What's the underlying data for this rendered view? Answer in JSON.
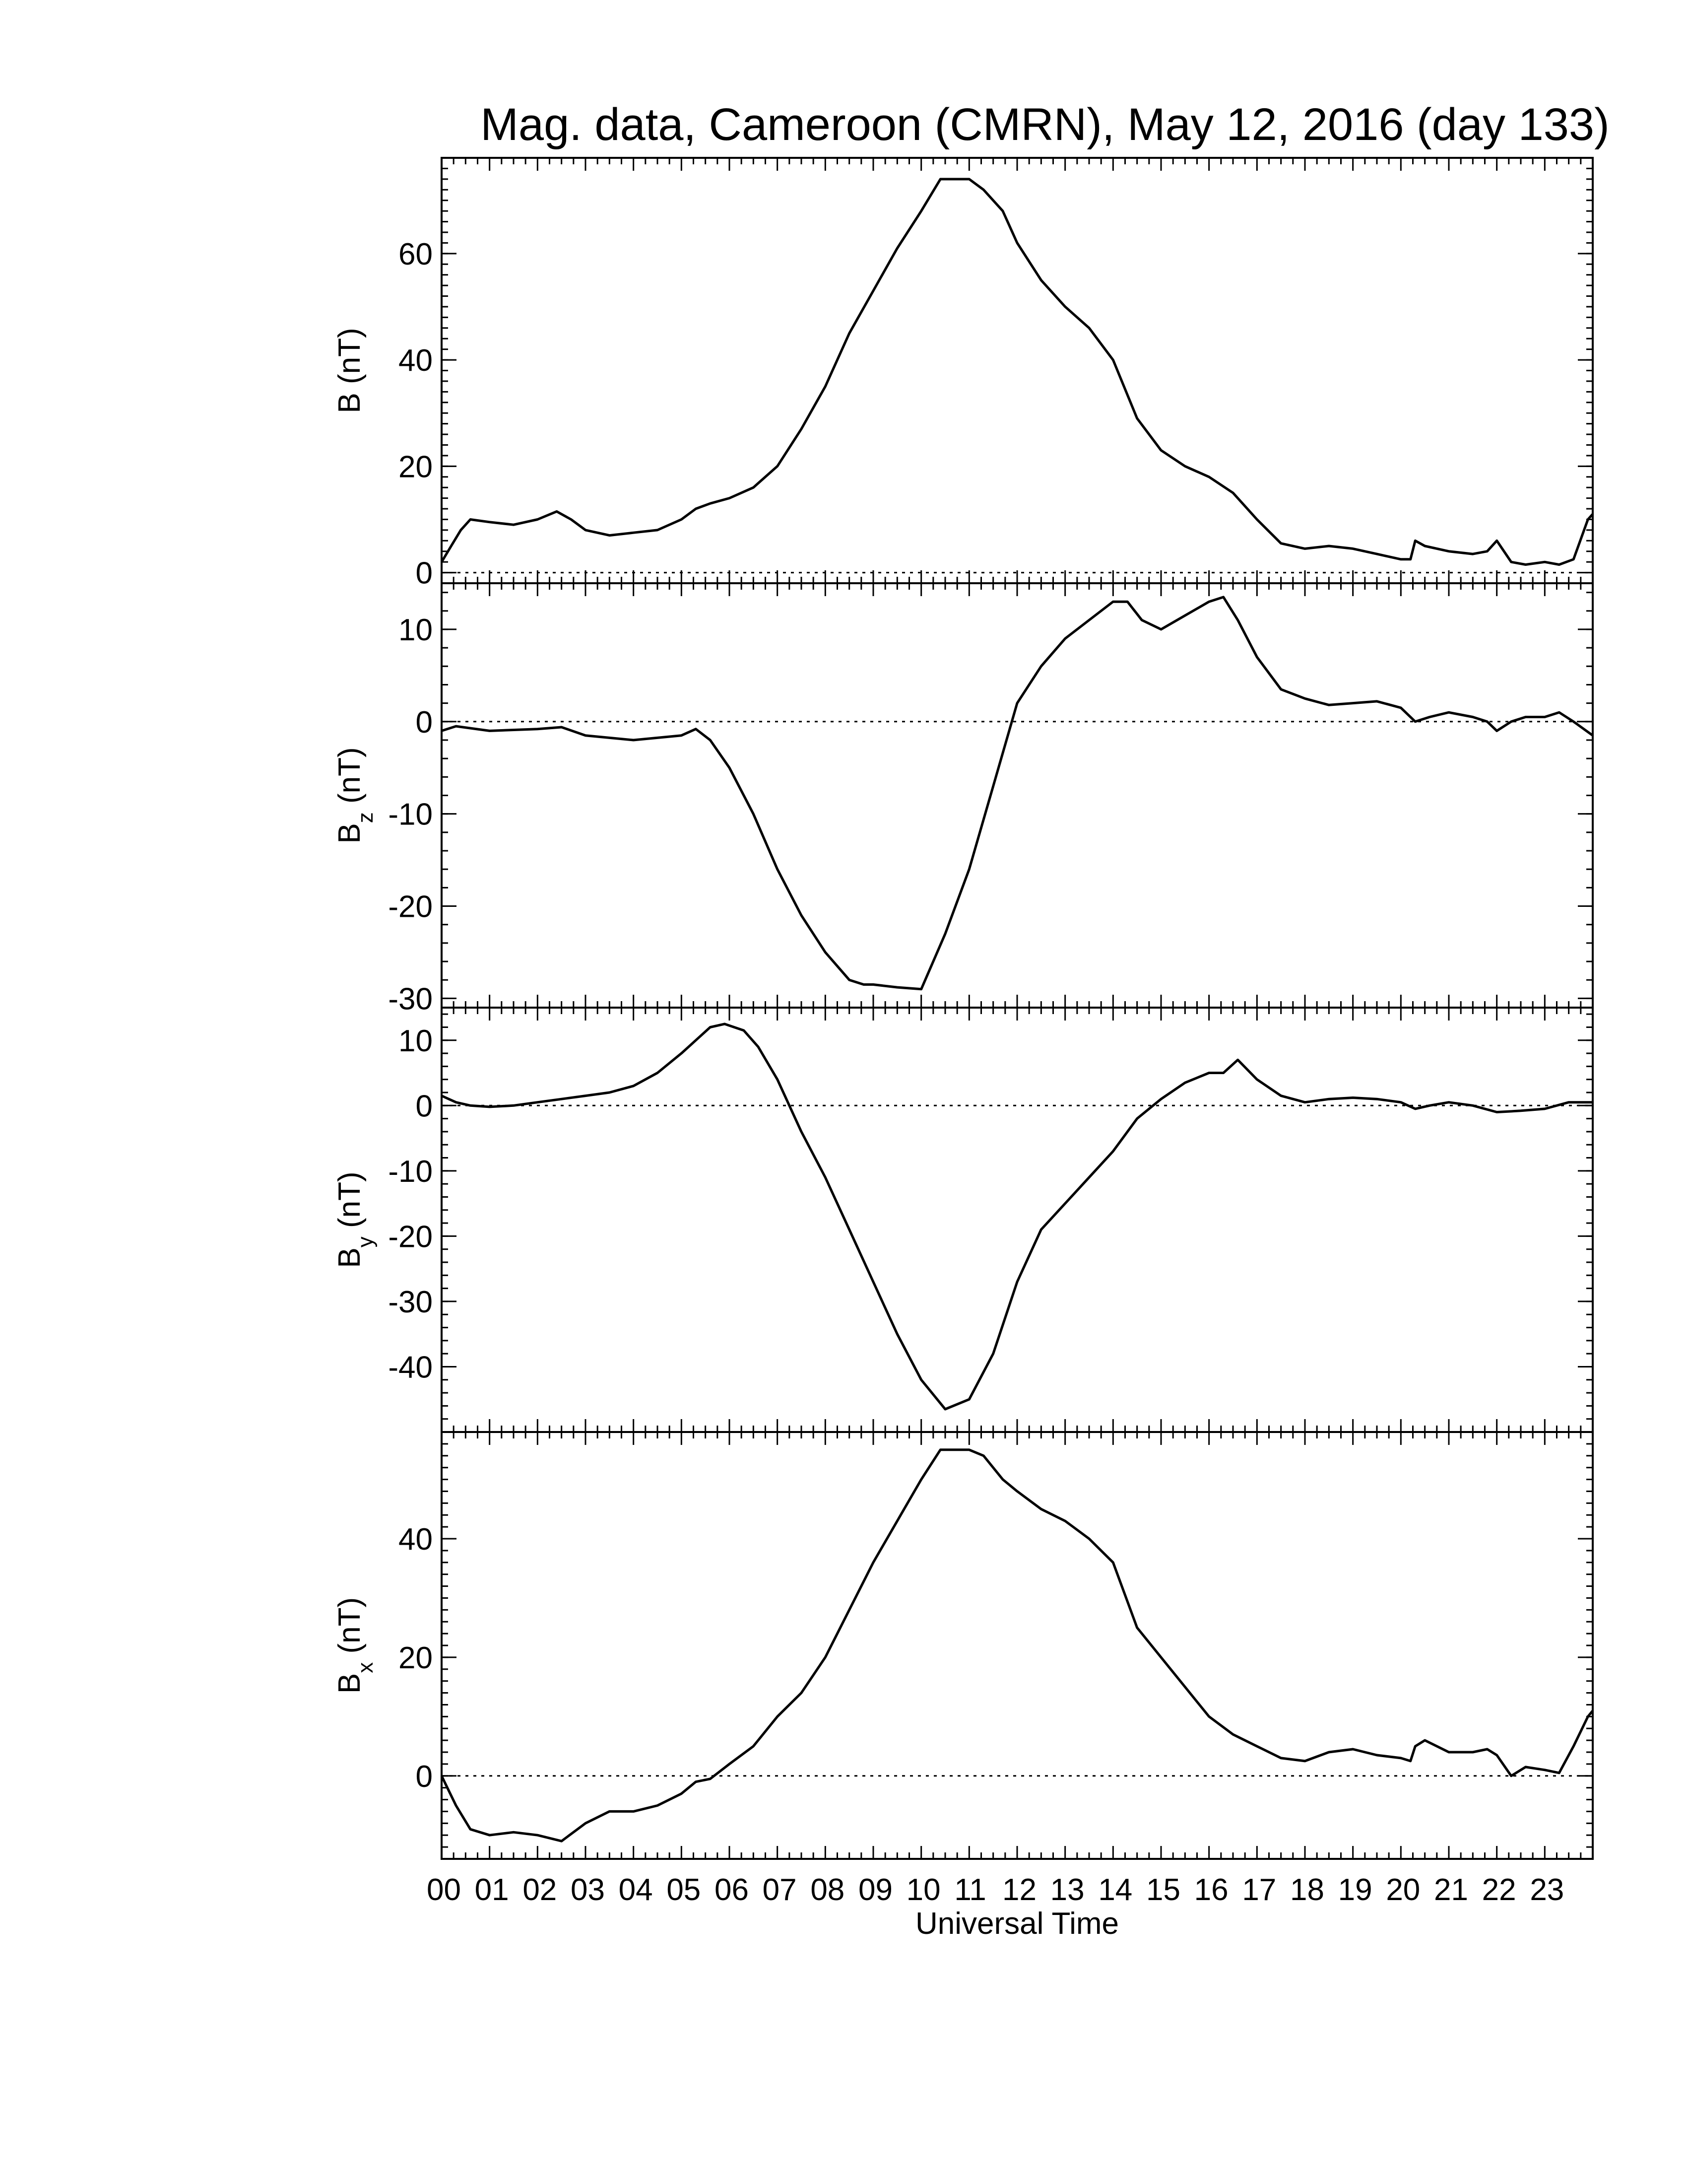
{
  "chart_data": {
    "type": "line",
    "title": "Mag. data, Cameroon (CMRN), May 12, 2016 (day 133)",
    "xlabel": "Universal Time",
    "x_tick_labels": [
      "00",
      "01",
      "02",
      "03",
      "04",
      "05",
      "06",
      "07",
      "08",
      "09",
      "10",
      "11",
      "12",
      "13",
      "14",
      "15",
      "16",
      "17",
      "18",
      "19",
      "20",
      "21",
      "22",
      "23"
    ],
    "xlim": [
      0,
      24
    ],
    "x_unit": "hours UT",
    "panels": [
      {
        "id": "B",
        "ylabel": "B (nT)",
        "ylabel_main": "B",
        "ylabel_sub": "",
        "ylabel_unit": "(nT)",
        "ylim": [
          -2,
          78
        ],
        "yticks": [
          0,
          20,
          40,
          60
        ],
        "ytick_labels": [
          "0",
          "20",
          "40",
          "60"
        ],
        "zero_line": true,
        "x": [
          0,
          0.2,
          0.4,
          0.6,
          1.0,
          1.5,
          2.0,
          2.4,
          2.7,
          3.0,
          3.5,
          4.0,
          4.5,
          5.0,
          5.3,
          5.6,
          6.0,
          6.5,
          7.0,
          7.5,
          8.0,
          8.5,
          9.0,
          9.5,
          10.0,
          10.4,
          10.8,
          11.0,
          11.3,
          11.7,
          12.0,
          12.5,
          13.0,
          13.5,
          14.0,
          14.5,
          15.0,
          15.5,
          16.0,
          16.5,
          17.0,
          17.5,
          18.0,
          18.5,
          19.0,
          19.5,
          20.0,
          20.2,
          20.3,
          20.5,
          21.0,
          21.5,
          21.8,
          22.0,
          22.3,
          22.6,
          23.0,
          23.3,
          23.6,
          23.9,
          24.0
        ],
        "y": [
          2,
          5,
          8,
          10,
          9.5,
          9,
          10,
          11.5,
          10,
          8,
          7,
          7.5,
          8,
          10,
          12,
          13,
          14,
          16,
          20,
          27,
          35,
          45,
          53,
          61,
          68,
          74,
          74,
          74,
          72,
          68,
          62,
          55,
          50,
          46,
          40,
          29,
          23,
          20,
          18,
          15,
          10,
          5.5,
          4.5,
          5,
          4.5,
          3.5,
          2.5,
          2.5,
          6,
          5,
          4,
          3.5,
          4,
          6,
          2,
          1.5,
          2,
          1.5,
          2.5,
          10,
          11
        ]
      },
      {
        "id": "Bz",
        "ylabel": "Bz (nT)",
        "ylabel_main": "B",
        "ylabel_sub": "z",
        "ylabel_unit": "(nT)",
        "ylim": [
          -31,
          15
        ],
        "yticks": [
          -30,
          -20,
          -10,
          0,
          10
        ],
        "ytick_labels": [
          "-30",
          "-20",
          "-10",
          "0",
          "10"
        ],
        "zero_line": true,
        "x": [
          0,
          0.3,
          1.0,
          2.0,
          2.5,
          3.0,
          4.0,
          5.0,
          5.3,
          5.6,
          6.0,
          6.5,
          7.0,
          7.5,
          8.0,
          8.5,
          8.8,
          9.0,
          9.5,
          10.0,
          10.5,
          11.0,
          11.5,
          12.0,
          12.5,
          13.0,
          13.5,
          14.0,
          14.3,
          14.6,
          15.0,
          15.5,
          16.0,
          16.3,
          16.6,
          17.0,
          17.5,
          18.0,
          18.5,
          19.0,
          19.5,
          20.0,
          20.3,
          20.6,
          21.0,
          21.5,
          21.8,
          22.0,
          22.3,
          22.6,
          23.0,
          23.3,
          23.6,
          24.0
        ],
        "y": [
          -1,
          -0.5,
          -1,
          -0.8,
          -0.6,
          -1.5,
          -2,
          -1.5,
          -0.8,
          -2,
          -5,
          -10,
          -16,
          -21,
          -25,
          -28,
          -28.5,
          -28.5,
          -28.8,
          -29,
          -23,
          -16,
          -7,
          2,
          6,
          9,
          11,
          13,
          13,
          11,
          10,
          11.5,
          13,
          13.5,
          11,
          7,
          3.5,
          2.5,
          1.8,
          2,
          2.2,
          1.5,
          0,
          0.5,
          1,
          0.5,
          0,
          -1,
          0,
          0.5,
          0.5,
          1,
          0,
          -1.5
        ]
      },
      {
        "id": "By",
        "ylabel": "By (nT)",
        "ylabel_main": "B",
        "ylabel_sub": "y",
        "ylabel_unit": "(nT)",
        "ylim": [
          -50,
          15
        ],
        "yticks": [
          -40,
          -30,
          -20,
          -10,
          0,
          10
        ],
        "ytick_labels": [
          "-40",
          "-30",
          "-20",
          "-10",
          "0",
          "10"
        ],
        "zero_line": true,
        "x": [
          0,
          0.3,
          0.6,
          1.0,
          1.5,
          2.0,
          2.5,
          3.0,
          3.5,
          4.0,
          4.5,
          5.0,
          5.3,
          5.6,
          5.9,
          6.3,
          6.6,
          7.0,
          7.5,
          8.0,
          8.5,
          9.0,
          9.5,
          10.0,
          10.5,
          11.0,
          11.5,
          12.0,
          12.5,
          13.0,
          13.5,
          14.0,
          14.5,
          15.0,
          15.5,
          16.0,
          16.3,
          16.6,
          17.0,
          17.5,
          18.0,
          18.5,
          19.0,
          19.5,
          20.0,
          20.3,
          20.6,
          21.0,
          21.5,
          22.0,
          22.5,
          23.0,
          23.5,
          24.0
        ],
        "y": [
          1.5,
          0.5,
          0,
          -0.2,
          0,
          0.5,
          1,
          1.5,
          2,
          3,
          5,
          8,
          10,
          12,
          12.5,
          11.5,
          9,
          4,
          -4,
          -11,
          -19,
          -27,
          -35,
          -42,
          -46.5,
          -45,
          -38,
          -27,
          -19,
          -15,
          -11,
          -7,
          -2,
          1,
          3.5,
          5,
          5,
          7,
          4,
          1.5,
          0.5,
          1,
          1.2,
          1,
          0.5,
          -0.5,
          0,
          0.5,
          0,
          -1,
          -0.8,
          -0.5,
          0.5,
          0.5
        ]
      },
      {
        "id": "Bx",
        "ylabel": "Bx (nT)",
        "ylabel_main": "B",
        "ylabel_sub": "x",
        "ylabel_unit": "(nT)",
        "ylim": [
          -14,
          58
        ],
        "yticks": [
          0,
          20,
          40
        ],
        "ytick_labels": [
          "0",
          "20",
          "40"
        ],
        "zero_line": true,
        "x": [
          0,
          0.3,
          0.6,
          1.0,
          1.5,
          2.0,
          2.5,
          3.0,
          3.5,
          4.0,
          4.5,
          5.0,
          5.3,
          5.6,
          6.0,
          6.5,
          7.0,
          7.5,
          8.0,
          8.5,
          9.0,
          9.5,
          10.0,
          10.4,
          10.8,
          11.0,
          11.3,
          11.7,
          12.0,
          12.5,
          13.0,
          13.5,
          14.0,
          14.5,
          15.0,
          15.5,
          16.0,
          16.5,
          17.0,
          17.5,
          18.0,
          18.5,
          19.0,
          19.5,
          20.0,
          20.2,
          20.3,
          20.5,
          21.0,
          21.5,
          21.8,
          22.0,
          22.3,
          22.6,
          23.0,
          23.3,
          23.6,
          23.9,
          24.0
        ],
        "y": [
          0,
          -5,
          -9,
          -10,
          -9.5,
          -10,
          -11,
          -8,
          -6,
          -6,
          -5,
          -3,
          -1,
          -0.5,
          2,
          5,
          10,
          14,
          20,
          28,
          36,
          43,
          50,
          55,
          55,
          55,
          54,
          50,
          48,
          45,
          43,
          40,
          36,
          25,
          20,
          15,
          10,
          7,
          5,
          3,
          2.5,
          4,
          4.5,
          3.5,
          3,
          2.5,
          5,
          6,
          4,
          4,
          4.5,
          3.5,
          0,
          1.5,
          1,
          0.5,
          5,
          10,
          11
        ]
      }
    ]
  }
}
